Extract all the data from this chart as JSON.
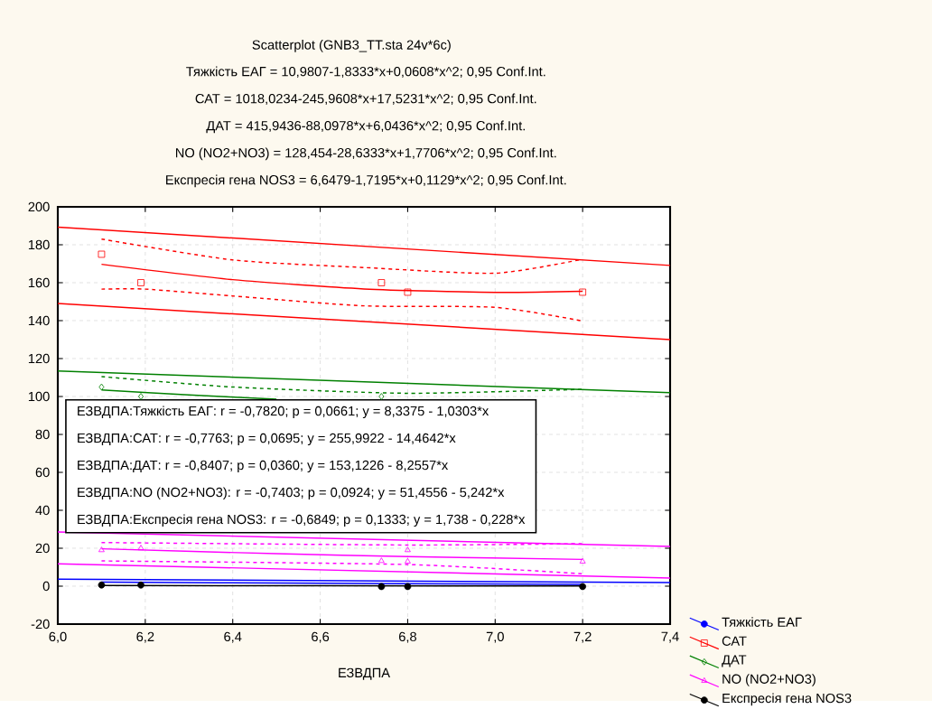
{
  "chart_data": {
    "type": "scatter",
    "title": "Scatterplot (GNB3_TT.sta 24v*6c)",
    "xlabel": "ЕЗВДПА",
    "annotations": [
      "Тяжкість ЕАГ = 10,9807-1,8333*x+0,0608*x^2; 0,95 Conf.Int.",
      "САТ = 1018,0234-245,9608*x+17,5231*x^2; 0,95 Conf.Int.",
      "ДАТ = 415,9436-88,0978*x+6,0436*x^2; 0,95 Conf.Int.",
      "NO (NO2+NO3) = 128,454-28,6333*x+1,7706*x^2; 0,95 Conf.Int.",
      "Експресія гена NOS3 = 6,6479-1,7195*x+0,1129*x^2; 0,95 Conf.Int.",
      "ЕЗВДПА:Тяжкість ЕАГ:   r = -0,7820; p = 0,0661;  y =   8,3375 -   1,0303*x",
      "ЕЗВДПА:САТ:   r = -0,7763; p = 0,0695;  y = 255,9922 - 14,4642*x",
      "ЕЗВДПА:ДАТ:   r = -0,8407; p = 0,0360;  y = 153,1226 -  8,2557*x",
      "ЕЗВДПА:NO (NO2+NO3):   r = -0,7403; p = 0,0924;  y =  51,4556 -   5,242*x",
      "ЕЗВДПА:Експресія гена NOS3:   r = -0,6849; p = 0,1333;  y =    1,738 -   0,228*x"
    ],
    "xlim": [
      6.0,
      7.4
    ],
    "xticks": [
      {
        "value": 6.0,
        "label": "6,0"
      },
      {
        "value": 6.2,
        "label": "6,2"
      },
      {
        "value": 6.4,
        "label": "6,4"
      },
      {
        "value": 6.6,
        "label": "6,6"
      },
      {
        "value": 6.8,
        "label": "6,8"
      },
      {
        "value": 7.0,
        "label": "7,0"
      },
      {
        "value": 7.2,
        "label": "7,2"
      },
      {
        "value": 7.4,
        "label": "7,4"
      }
    ],
    "ylim": [
      -20,
      200
    ],
    "yticks": [
      -20,
      0,
      20,
      40,
      60,
      80,
      100,
      120,
      140,
      160,
      180,
      200
    ],
    "grid": true,
    "legend": "bottom right",
    "series": [
      {
        "name": "Тяжкість ЕАГ",
        "color": "#0000ff",
        "marker": "circle"
      },
      {
        "name": "САТ",
        "color": "#ff0000",
        "marker": "square",
        "x": [
          6.1,
          6.19,
          6.74,
          6.8,
          7.2
        ],
        "values": [
          175,
          160,
          160,
          155,
          155
        ]
      },
      {
        "name": "ДАТ",
        "color": "#008000",
        "marker": "diamond",
        "x": [
          6.1,
          6.19,
          6.74
        ],
        "values": [
          105,
          100,
          100
        ]
      },
      {
        "name": "NO (NO2+NO3)",
        "color": "#ff00ff",
        "marker": "triangle",
        "x": [
          6.1,
          6.19,
          6.74,
          6.8,
          6.8,
          7.2
        ],
        "values": [
          19,
          20,
          13.3,
          19,
          13,
          13
        ]
      },
      {
        "name": "Експресія гена NOS3",
        "color": "#000000",
        "marker": "circle",
        "x": [
          6.1,
          6.19,
          6.74,
          6.8,
          7.2
        ],
        "values": [
          0.6,
          0.6,
          -0.2,
          -0.2,
          -0.2
        ]
      },
      {
        "type": "line",
        "color": "#ff0000",
        "line_style": "solid",
        "x": [
          6.1,
          6.4,
          6.7,
          7.0,
          7.2
        ],
        "values": [
          169.7,
          161.6,
          156.7,
          154.9,
          155.5
        ]
      },
      {
        "type": "line",
        "color": "#ff0000",
        "line_style": "dashed",
        "x": [
          6.1,
          6.4,
          6.7,
          7.0,
          7.2
        ],
        "values": [
          183,
          172,
          168,
          165,
          172.4
        ]
      },
      {
        "type": "line",
        "color": "#ff0000",
        "line_style": "dashed",
        "x": [
          6.1,
          6.2,
          6.4,
          6.7,
          7.0,
          7.2
        ],
        "values": [
          156.6,
          156.6,
          153,
          147.8,
          147,
          139.8
        ]
      },
      {
        "type": "line",
        "color": "#ff0000",
        "line_style": "solid",
        "x": [
          6.0,
          7.4
        ],
        "values": [
          189.3,
          169.1
        ]
      },
      {
        "type": "line",
        "color": "#ff0000",
        "line_style": "solid",
        "x": [
          6.0,
          7.4
        ],
        "values": [
          149,
          130
        ]
      },
      {
        "type": "line",
        "color": "#008000",
        "line_style": "solid",
        "x": [
          6.1,
          6.3,
          6.5
        ],
        "values": [
          103.4,
          100.8,
          98.6
        ]
      },
      {
        "type": "line",
        "color": "#008000",
        "line_style": "dashed",
        "x": [
          6.1,
          6.4,
          6.8,
          7.2
        ],
        "values": [
          110.5,
          105,
          101.7,
          103.8
        ]
      },
      {
        "type": "line",
        "color": "#008000",
        "line_style": "solid",
        "x": [
          6.0,
          7.4
        ],
        "values": [
          113.5,
          102
        ]
      },
      {
        "type": "line",
        "color": "#ff00ff",
        "line_style": "solid",
        "x": [
          6.1,
          6.5,
          6.8,
          7.2
        ],
        "values": [
          19.7,
          17.1,
          15.6,
          14.1
        ]
      },
      {
        "type": "line",
        "color": "#ff00ff",
        "line_style": "dashed",
        "x": [
          6.1,
          6.8,
          7.2
        ],
        "values": [
          23,
          21.7,
          22.4
        ]
      },
      {
        "type": "line",
        "color": "#ff00ff",
        "line_style": "dashed",
        "x": [
          6.1,
          6.8,
          7.2
        ],
        "values": [
          13.3,
          11.4,
          6.5
        ]
      },
      {
        "type": "line",
        "color": "#ff00ff",
        "line_style": "solid",
        "x": [
          6.0,
          7.4
        ],
        "values": [
          28.6,
          20.9
        ]
      },
      {
        "type": "line",
        "color": "#ff00ff",
        "line_style": "solid",
        "x": [
          6.0,
          7.4
        ],
        "values": [
          11.8,
          4.3
        ]
      },
      {
        "type": "line",
        "color": "#0000ff",
        "line_style": "solid",
        "x": [
          6.1,
          6.6,
          7.2
        ],
        "values": [
          2.1,
          1.5,
          0.9
        ]
      },
      {
        "type": "line",
        "color": "#0000ff",
        "line_style": "solid",
        "x": [
          6.0,
          7.4
        ],
        "values": [
          3.7,
          1.9
        ]
      },
      {
        "type": "line",
        "color": "#000000",
        "line_style": "solid",
        "x": [
          6.1,
          6.6,
          7.2
        ],
        "values": [
          0.4,
          0.2,
          0.1
        ]
      }
    ]
  }
}
